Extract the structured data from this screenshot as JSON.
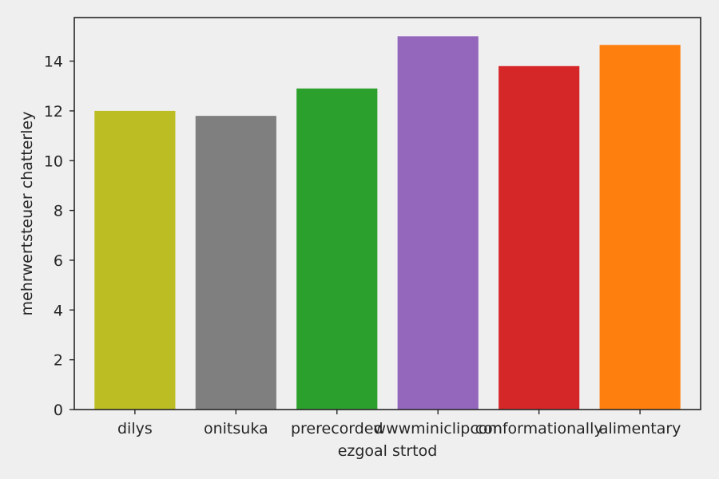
{
  "chart_data": {
    "type": "bar",
    "title": "",
    "xlabel": "ezgoal strtod",
    "ylabel": "mehrwertsteuer chatterley",
    "categories": [
      "dilys",
      "onitsuka",
      "prerecorded",
      "wwwminiclipcom",
      "conformationally",
      "alimentary"
    ],
    "values": [
      12.0,
      11.8,
      12.9,
      15.0,
      13.8,
      14.65
    ],
    "colors": [
      "#bcbd22",
      "#7f7f7f",
      "#2ca02c",
      "#9467bd",
      "#d62728",
      "#ff7f0e"
    ],
    "ylim": [
      0,
      15.75
    ],
    "yticks": [
      0,
      2,
      4,
      6,
      8,
      10,
      12,
      14
    ],
    "grid": false,
    "background": "#efefef"
  }
}
